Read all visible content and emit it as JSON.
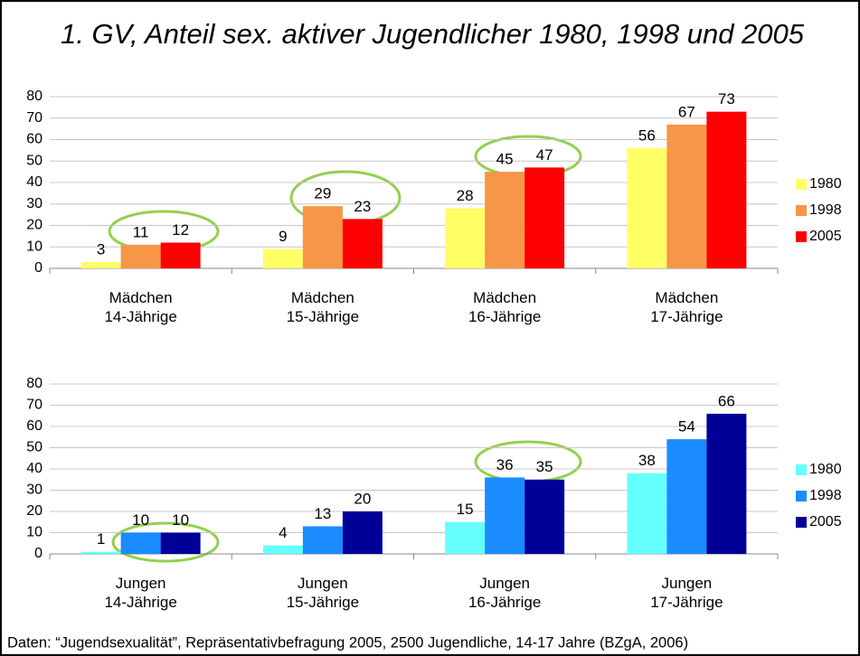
{
  "title": "1. GV, Anteil sex. aktiver Jugendlicher 1980, 1998 und 2005",
  "source": "Daten: “Jugendsexualität”, Repräsentativbefragung 2005, 2500 Jugendliche, 14-17 Jahre (BZgA, 2006)",
  "chart_data": [
    {
      "type": "bar",
      "categories": [
        "Mädchen\n14-Jährige",
        "Mädchen\n15-Jährige",
        "Mädchen\n16-Jährige",
        "Mädchen\n17-Jährige"
      ],
      "series": [
        {
          "name": "1980",
          "color": "#ffff66",
          "values": [
            3,
            9,
            28,
            56
          ]
        },
        {
          "name": "1998",
          "color": "#f79646",
          "values": [
            11,
            29,
            45,
            67
          ]
        },
        {
          "name": "2005",
          "color": "#ff0000",
          "values": [
            12,
            23,
            47,
            73
          ]
        }
      ],
      "ylim": [
        0,
        80
      ],
      "yticks": [
        0,
        10,
        20,
        30,
        40,
        50,
        60,
        70,
        80
      ],
      "grid": true,
      "legend": "right"
    },
    {
      "type": "bar",
      "categories": [
        "Jungen\n14-Jährige",
        "Jungen\n15-Jährige",
        "Jungen\n16-Jährige",
        "Jungen\n17-Jährige"
      ],
      "series": [
        {
          "name": "1980",
          "color": "#66ffff",
          "values": [
            1,
            4,
            15,
            38
          ]
        },
        {
          "name": "1998",
          "color": "#1a8cff",
          "values": [
            10,
            13,
            36,
            54
          ]
        },
        {
          "name": "2005",
          "color": "#000099",
          "values": [
            10,
            20,
            35,
            66
          ]
        }
      ],
      "ylim": [
        0,
        80
      ],
      "yticks": [
        0,
        10,
        20,
        30,
        40,
        50,
        60,
        70,
        80
      ],
      "grid": true,
      "legend": "right"
    }
  ]
}
